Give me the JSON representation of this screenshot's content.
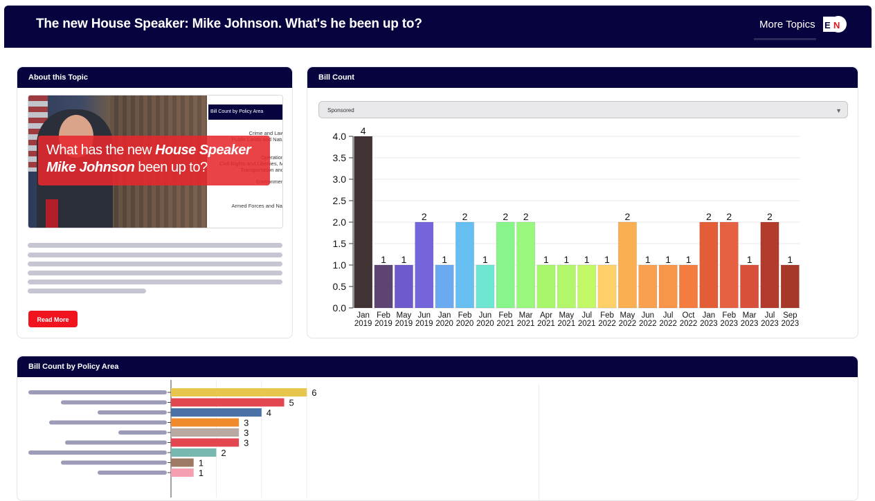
{
  "header": {
    "title": "The new House Speaker: Mike Johnson. What's he been up to?",
    "more_topics": "More Topics",
    "logo_text": "EN"
  },
  "about": {
    "heading": "About this Topic",
    "hero": {
      "headline_plain_1": "What has the new ",
      "headline_bold_1": "House Speaker",
      "headline_bold_2": "Mike Johnson",
      "headline_plain_2": " been up to?",
      "side_heading": "Bill Count by Policy Area",
      "side_lines": [
        "Crime and Law",
        "Public Lands and Natu",
        "Operation",
        "Civil Rights and Liberties, M",
        "Transportation and",
        "Environmen",
        "Armed Forces and Nat"
      ]
    },
    "read_more": "Read More"
  },
  "bill_count": {
    "heading": "Bill Count",
    "select_value": "Sponsored"
  },
  "chart_data": [
    {
      "type": "bar",
      "categories": [
        "Jan 2019",
        "Feb 2019",
        "May 2019",
        "Jun 2019",
        "Jan 2020",
        "Feb 2020",
        "Jun 2020",
        "Feb 2021",
        "Mar 2021",
        "Apr 2021",
        "May 2021",
        "Jul 2021",
        "Feb 2022",
        "May 2022",
        "Jun 2022",
        "Jul 2022",
        "Oct 2022",
        "Jan 2023",
        "Feb 2023",
        "Mar 2023",
        "Jul 2023",
        "Sep 2023"
      ],
      "values": [
        4,
        1,
        1,
        2,
        1,
        2,
        1,
        2,
        2,
        1,
        1,
        1,
        1,
        2,
        1,
        1,
        1,
        2,
        2,
        1,
        2,
        1
      ],
      "colors": [
        "#413234",
        "#5e4473",
        "#6f5acb",
        "#7466da",
        "#6aaaf0",
        "#66bff0",
        "#6ee6d2",
        "#88f58a",
        "#98f77c",
        "#a8f76a",
        "#b2f76a",
        "#c2f766",
        "#fdd069",
        "#f9af52",
        "#f8a050",
        "#f79548",
        "#f47c3e",
        "#e35d36",
        "#e56142",
        "#d9503a",
        "#b23b2c",
        "#a6382a"
      ],
      "yticks": [
        "0.0",
        "0.5",
        "1.0",
        "1.5",
        "2.0",
        "2.5",
        "3.0",
        "3.5",
        "4.0"
      ],
      "ylim": [
        0,
        4
      ],
      "grid": true
    },
    {
      "type": "bar",
      "orientation": "horizontal",
      "title": "Bill Count by Policy Area",
      "values": [
        6,
        5,
        4,
        3,
        3,
        3,
        2,
        1,
        1
      ],
      "colors": [
        "#e6c64c",
        "#e2464f",
        "#4a72a6",
        "#ef8b2c",
        "#b9a9a3",
        "#e2464f",
        "#78b8b0",
        "#9c7a63",
        "#f5a0b0"
      ]
    }
  ],
  "policy": {
    "heading": "Bill Count by Policy Area"
  }
}
